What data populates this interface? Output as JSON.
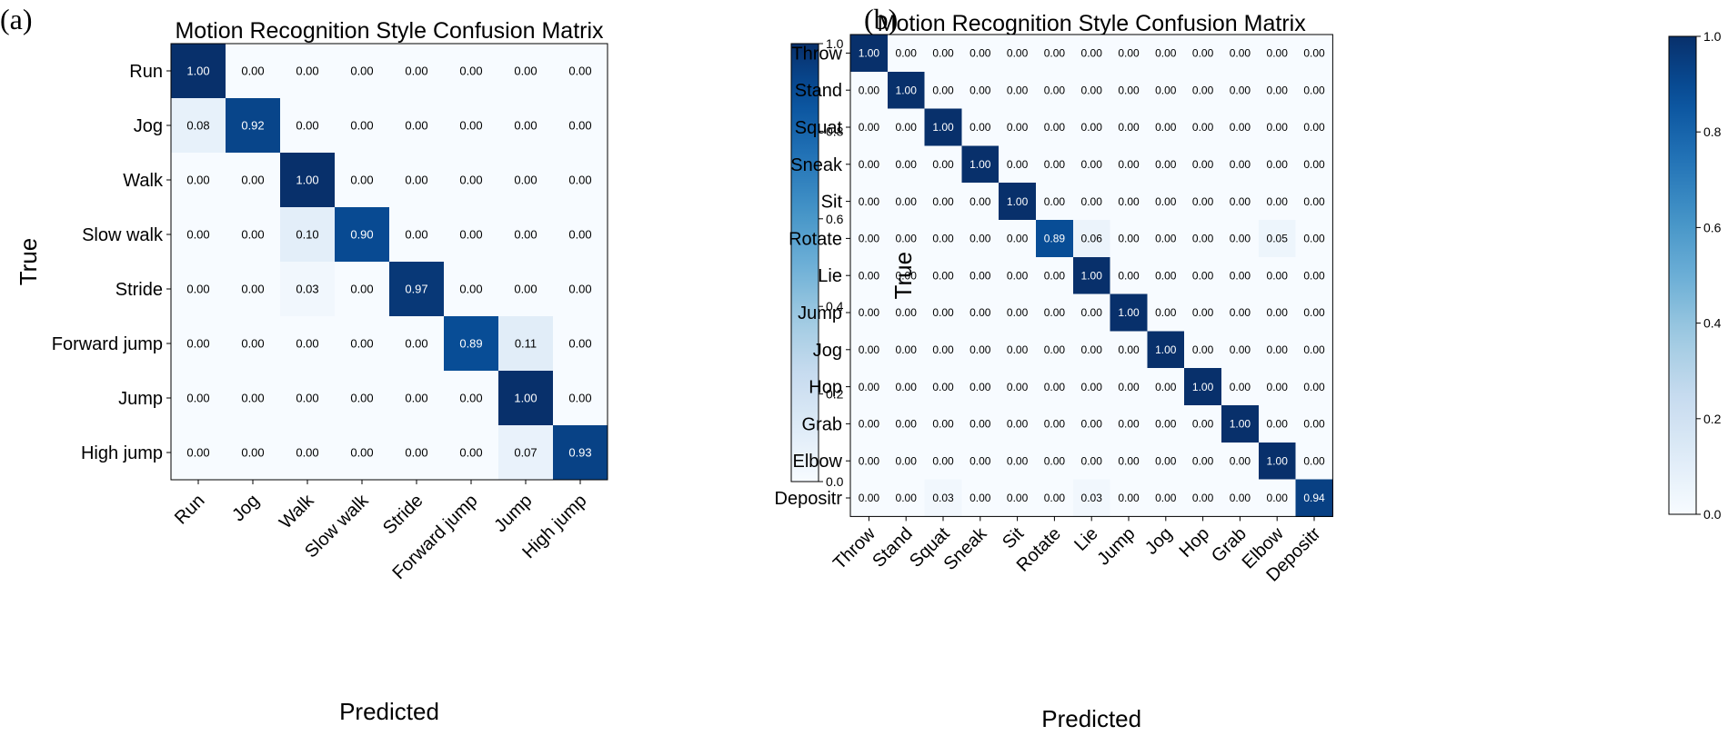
{
  "chart_data": [
    {
      "type": "heatmap",
      "panel_label": "(a)",
      "title": "Motion Recognition Style Confusion Matrix",
      "xlabel": "Predicted",
      "ylabel": "True",
      "x_categories": [
        "Run",
        "Jog",
        "Walk",
        "Slow walk",
        "Stride",
        "Forward jump",
        "Jump",
        "High jump"
      ],
      "y_categories": [
        "Run",
        "Jog",
        "Walk",
        "Slow walk",
        "Stride",
        "Forward jump",
        "Jump",
        "High jump"
      ],
      "values": [
        [
          1.0,
          0.0,
          0.0,
          0.0,
          0.0,
          0.0,
          0.0,
          0.0
        ],
        [
          0.08,
          0.92,
          0.0,
          0.0,
          0.0,
          0.0,
          0.0,
          0.0
        ],
        [
          0.0,
          0.0,
          1.0,
          0.0,
          0.0,
          0.0,
          0.0,
          0.0
        ],
        [
          0.0,
          0.0,
          0.1,
          0.9,
          0.0,
          0.0,
          0.0,
          0.0
        ],
        [
          0.0,
          0.0,
          0.03,
          0.0,
          0.97,
          0.0,
          0.0,
          0.0
        ],
        [
          0.0,
          0.0,
          0.0,
          0.0,
          0.0,
          0.89,
          0.11,
          0.0
        ],
        [
          0.0,
          0.0,
          0.0,
          0.0,
          0.0,
          0.0,
          1.0,
          0.0
        ],
        [
          0.0,
          0.0,
          0.0,
          0.0,
          0.0,
          0.0,
          0.07,
          0.93
        ]
      ],
      "colorbar": {
        "range": [
          0.0,
          1.0
        ],
        "ticks": [
          "0.0",
          "0.2",
          "0.4",
          "0.6",
          "0.8",
          "1.0"
        ]
      },
      "colormap": "Blues"
    },
    {
      "type": "heatmap",
      "panel_label": "(b)",
      "title": "Motion Recognition Style Confusion Matrix",
      "xlabel": "Predicted",
      "ylabel": "True",
      "x_categories": [
        "Throw",
        "Stand",
        "Squat",
        "Sneak",
        "Sit",
        "Rotate",
        "Lie",
        "Jump",
        "Jog",
        "Hop",
        "Grab",
        "Elbow",
        "Depositr"
      ],
      "y_categories": [
        "Throw",
        "Stand",
        "Squat",
        "Sneak",
        "Sit",
        "Rotate",
        "Lie",
        "Jump",
        "Jog",
        "Hop",
        "Grab",
        "Elbow",
        "Depositr"
      ],
      "values": [
        [
          1.0,
          0.0,
          0.0,
          0.0,
          0.0,
          0.0,
          0.0,
          0.0,
          0.0,
          0.0,
          0.0,
          0.0,
          0.0
        ],
        [
          0.0,
          1.0,
          0.0,
          0.0,
          0.0,
          0.0,
          0.0,
          0.0,
          0.0,
          0.0,
          0.0,
          0.0,
          0.0
        ],
        [
          0.0,
          0.0,
          1.0,
          0.0,
          0.0,
          0.0,
          0.0,
          0.0,
          0.0,
          0.0,
          0.0,
          0.0,
          0.0
        ],
        [
          0.0,
          0.0,
          0.0,
          1.0,
          0.0,
          0.0,
          0.0,
          0.0,
          0.0,
          0.0,
          0.0,
          0.0,
          0.0
        ],
        [
          0.0,
          0.0,
          0.0,
          0.0,
          1.0,
          0.0,
          0.0,
          0.0,
          0.0,
          0.0,
          0.0,
          0.0,
          0.0
        ],
        [
          0.0,
          0.0,
          0.0,
          0.0,
          0.0,
          0.89,
          0.06,
          0.0,
          0.0,
          0.0,
          0.0,
          0.05,
          0.0
        ],
        [
          0.0,
          0.0,
          0.0,
          0.0,
          0.0,
          0.0,
          1.0,
          0.0,
          0.0,
          0.0,
          0.0,
          0.0,
          0.0
        ],
        [
          0.0,
          0.0,
          0.0,
          0.0,
          0.0,
          0.0,
          0.0,
          1.0,
          0.0,
          0.0,
          0.0,
          0.0,
          0.0
        ],
        [
          0.0,
          0.0,
          0.0,
          0.0,
          0.0,
          0.0,
          0.0,
          0.0,
          1.0,
          0.0,
          0.0,
          0.0,
          0.0
        ],
        [
          0.0,
          0.0,
          0.0,
          0.0,
          0.0,
          0.0,
          0.0,
          0.0,
          0.0,
          1.0,
          0.0,
          0.0,
          0.0
        ],
        [
          0.0,
          0.0,
          0.0,
          0.0,
          0.0,
          0.0,
          0.0,
          0.0,
          0.0,
          0.0,
          1.0,
          0.0,
          0.0
        ],
        [
          0.0,
          0.0,
          0.0,
          0.0,
          0.0,
          0.0,
          0.0,
          0.0,
          0.0,
          0.0,
          0.0,
          1.0,
          0.0
        ],
        [
          0.0,
          0.0,
          0.03,
          0.0,
          0.0,
          0.0,
          0.03,
          0.0,
          0.0,
          0.0,
          0.0,
          0.0,
          0.94
        ]
      ],
      "colorbar": {
        "range": [
          0.0,
          1.0
        ],
        "ticks": [
          "0.0",
          "0.2",
          "0.4",
          "0.6",
          "0.8",
          "1.0"
        ]
      },
      "colormap": "Blues"
    }
  ]
}
